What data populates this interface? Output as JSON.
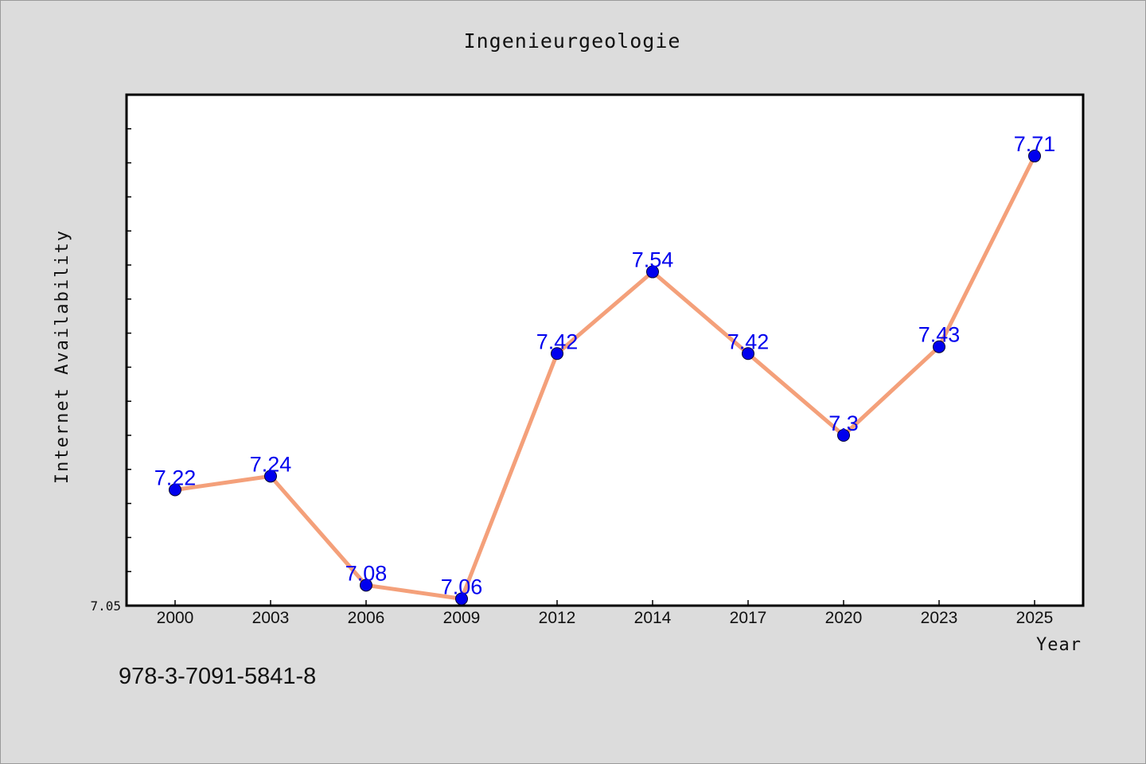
{
  "chart_data": {
    "type": "line",
    "title": "Ingenieurgeologie",
    "xlabel": "Year",
    "ylabel": "Internet Availability",
    "categories": [
      "2000",
      "2003",
      "2006",
      "2009",
      "2012",
      "2014",
      "2017",
      "2020",
      "2023",
      "2025"
    ],
    "series": [
      {
        "values": [
          7.22,
          7.24,
          7.08,
          7.06,
          7.42,
          7.54,
          7.42,
          7.3,
          7.43,
          7.71
        ],
        "labels": [
          "7.22",
          "7.24",
          "7.08",
          "7.06",
          "7.42",
          "7.54",
          "7.42",
          "7.3",
          "7.43",
          "7.71"
        ],
        "line_color": "#f4a07a",
        "marker_color": "#0000ee",
        "label_color": "#0000ee"
      }
    ],
    "ylim": [
      7.05,
      7.8
    ],
    "y_tick_labels": [
      "7.05"
    ],
    "grid": false,
    "legend": "none"
  },
  "footer": {
    "isbn": "978-3-7091-5841-8"
  }
}
